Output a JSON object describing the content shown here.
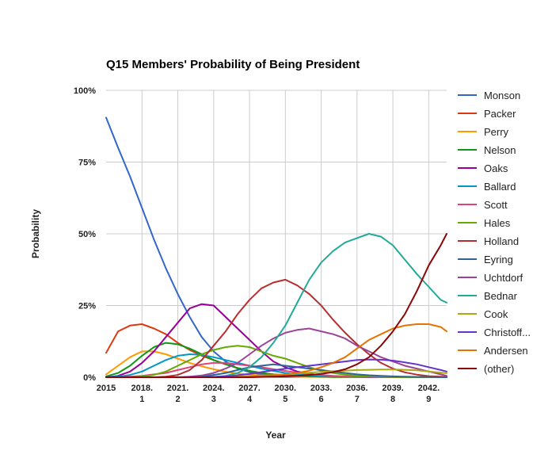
{
  "chart_data": {
    "type": "line",
    "title": "Q15 Members' Probability of Being President",
    "xlabel": "Year",
    "ylabel": "Probability",
    "xlim": [
      2015,
      2043.5
    ],
    "ylim": [
      0,
      100
    ],
    "y_ticks": [
      "0%",
      "25%",
      "50%",
      "75%",
      "100%"
    ],
    "x_ticks": [
      {
        "x": 2015,
        "label": [
          "2015"
        ]
      },
      {
        "x": 2018,
        "label": [
          "2018.",
          "1"
        ]
      },
      {
        "x": 2021,
        "label": [
          "2021.",
          "2"
        ]
      },
      {
        "x": 2024,
        "label": [
          "2024.",
          "3"
        ]
      },
      {
        "x": 2027,
        "label": [
          "2027.",
          "4"
        ]
      },
      {
        "x": 2030,
        "label": [
          "2030.",
          "5"
        ]
      },
      {
        "x": 2033,
        "label": [
          "2033.",
          "6"
        ]
      },
      {
        "x": 2036,
        "label": [
          "2036.",
          "7"
        ]
      },
      {
        "x": 2039,
        "label": [
          "2039.",
          "8"
        ]
      },
      {
        "x": 2042,
        "label": [
          "2042.",
          "9"
        ]
      }
    ],
    "grid": true,
    "legend_position": "right",
    "x": [
      2015,
      2016,
      2017,
      2018,
      2019,
      2020,
      2021,
      2022,
      2023,
      2024,
      2025,
      2026,
      2027,
      2028,
      2029,
      2030,
      2031,
      2032,
      2033,
      2034,
      2035,
      2036,
      2037,
      2038,
      2039,
      2040,
      2041,
      2042,
      2043,
      2043.5
    ],
    "series": [
      {
        "name": "Monson",
        "color": "#3366cc",
        "values": [
          90.5,
          80,
          70,
          59,
          48,
          38,
          29,
          21,
          14,
          9,
          5.5,
          3,
          1.8,
          1,
          0.6,
          0.4,
          0.3,
          0.2,
          0.1,
          0.1,
          0.1,
          0,
          0,
          0,
          0,
          0,
          0,
          0,
          0,
          0
        ]
      },
      {
        "name": "Packer",
        "color": "#dc3912",
        "values": [
          8.5,
          16,
          18,
          18.5,
          17,
          15,
          12,
          9.5,
          7.5,
          6,
          4.5,
          3.2,
          2.2,
          1.5,
          1,
          0.7,
          0.5,
          0.3,
          0.2,
          0.1,
          0.1,
          0.1,
          0,
          0,
          0,
          0,
          0,
          0,
          0,
          0
        ]
      },
      {
        "name": "Perry",
        "color": "#ff9900",
        "values": [
          1,
          4,
          7,
          9,
          9,
          8,
          6.5,
          5,
          3.8,
          2.8,
          1.9,
          1.3,
          0.9,
          0.6,
          0.4,
          0.3,
          0.2,
          0.1,
          0.1,
          0.1,
          0,
          0,
          0,
          0,
          0,
          0,
          0,
          0,
          0,
          0
        ]
      },
      {
        "name": "Nelson",
        "color": "#109618",
        "values": [
          0.3,
          1.5,
          4,
          7.5,
          10.5,
          12,
          11.5,
          10,
          8,
          6,
          4.5,
          3.2,
          2.2,
          1.5,
          1,
          0.7,
          0.5,
          0.3,
          0.2,
          0.1,
          0.1,
          0.1,
          0,
          0,
          0,
          0,
          0,
          0,
          0,
          0
        ]
      },
      {
        "name": "Oaks",
        "color": "#990099",
        "values": [
          0,
          0.5,
          2,
          5,
          9,
          14,
          19,
          24,
          25.5,
          25,
          21,
          17,
          13,
          9,
          5.5,
          3.5,
          2,
          1.2,
          0.7,
          0.4,
          0.2,
          0.1,
          0.1,
          0,
          0,
          0,
          0,
          0,
          0,
          0
        ]
      },
      {
        "name": "Ballard",
        "color": "#0099c6",
        "values": [
          0,
          0.2,
          0.8,
          2,
          4,
          6,
          7.5,
          8,
          7.8,
          7,
          6,
          5,
          4,
          3,
          2.2,
          1.5,
          1,
          0.7,
          0.4,
          0.3,
          0.2,
          0.1,
          0.1,
          0,
          0,
          0,
          0,
          0,
          0,
          0
        ]
      },
      {
        "name": "Scott",
        "color": "#dd4477",
        "values": [
          0,
          0,
          0.2,
          0.5,
          1,
          1.5,
          2.5,
          3.5,
          4.5,
          5,
          5,
          4.5,
          4,
          3.5,
          2.8,
          2.2,
          1.6,
          1.1,
          0.8,
          0.5,
          0.3,
          0.2,
          0.1,
          0.1,
          0,
          0,
          0,
          0,
          0,
          0
        ]
      },
      {
        "name": "Hales",
        "color": "#66aa00",
        "values": [
          0,
          0,
          0,
          0.2,
          0.8,
          2,
          4,
          6,
          8,
          9.5,
          10.5,
          11,
          10.5,
          9,
          7.5,
          6.5,
          5,
          3.5,
          2.3,
          1.5,
          0.9,
          0.5,
          0.3,
          0.2,
          0.1,
          0,
          0,
          0,
          0,
          0
        ]
      },
      {
        "name": "Holland",
        "color": "#b82e2e",
        "values": [
          0,
          0,
          0,
          0,
          0,
          0.2,
          0.8,
          2.5,
          6,
          11,
          16,
          22,
          27,
          31,
          33,
          34,
          32,
          29,
          25,
          20,
          15.5,
          11.5,
          8,
          5,
          3,
          1.7,
          0.9,
          0.4,
          0.2,
          0.1
        ]
      },
      {
        "name": "Eyring",
        "color": "#316395",
        "values": [
          0,
          0,
          0,
          0,
          0,
          0,
          0,
          0,
          0.2,
          0.8,
          1.5,
          2.5,
          3.5,
          4,
          4.5,
          4,
          3.5,
          3,
          2.5,
          2,
          1.5,
          1,
          0.7,
          0.5,
          0.3,
          0.2,
          0.1,
          0.1,
          0,
          0
        ]
      },
      {
        "name": "Uchtdorf",
        "color": "#994499",
        "values": [
          0,
          0,
          0,
          0,
          0,
          0,
          0,
          0.2,
          0.6,
          1.5,
          3,
          5,
          8,
          11,
          13.5,
          15.5,
          16.5,
          17,
          16,
          15,
          13.5,
          11,
          9,
          7,
          5.5,
          4,
          3,
          2,
          1,
          0.5
        ]
      },
      {
        "name": "Bednar",
        "color": "#22aa99",
        "values": [
          0,
          0,
          0,
          0,
          0,
          0,
          0,
          0,
          0,
          0.1,
          0.5,
          1.5,
          3.5,
          7,
          12,
          18,
          26,
          34,
          40,
          44,
          47,
          48.5,
          50,
          49,
          46,
          41,
          36,
          31.5,
          27,
          26
        ]
      },
      {
        "name": "Cook",
        "color": "#aaaa11",
        "values": [
          0,
          0,
          0,
          0,
          0,
          0,
          0,
          0,
          0,
          0,
          0.1,
          0.2,
          0.4,
          0.6,
          0.8,
          1,
          1.3,
          1.6,
          1.9,
          2.1,
          2.3,
          2.5,
          2.6,
          2.7,
          2.7,
          2.6,
          2.4,
          2,
          1.6,
          1.4
        ]
      },
      {
        "name": "Christoff...",
        "color": "#6633cc",
        "values": [
          0,
          0,
          0,
          0,
          0,
          0,
          0,
          0,
          0,
          0.1,
          0.3,
          0.7,
          1.2,
          1.8,
          2.4,
          3,
          3.5,
          4,
          4.5,
          5,
          5.5,
          6,
          6.2,
          6.1,
          5.8,
          5.2,
          4.5,
          3.5,
          2.5,
          2
        ]
      },
      {
        "name": "Andersen",
        "color": "#e67300",
        "values": [
          0,
          0,
          0,
          0,
          0,
          0,
          0,
          0,
          0,
          0,
          0,
          0.1,
          0.2,
          0.4,
          0.7,
          1,
          1.5,
          2.3,
          3.5,
          5,
          7,
          10,
          13,
          15,
          17,
          18,
          18.5,
          18.5,
          17.5,
          16
        ]
      },
      {
        "name": "(other)",
        "color": "#8b0707",
        "values": [
          0,
          0,
          0,
          0,
          0,
          0,
          0,
          0,
          0,
          0,
          0,
          0,
          0,
          0.1,
          0.2,
          0.3,
          0.5,
          0.8,
          1.2,
          1.8,
          2.8,
          4.5,
          7,
          11,
          16,
          22,
          30,
          39,
          46,
          50
        ]
      }
    ]
  }
}
